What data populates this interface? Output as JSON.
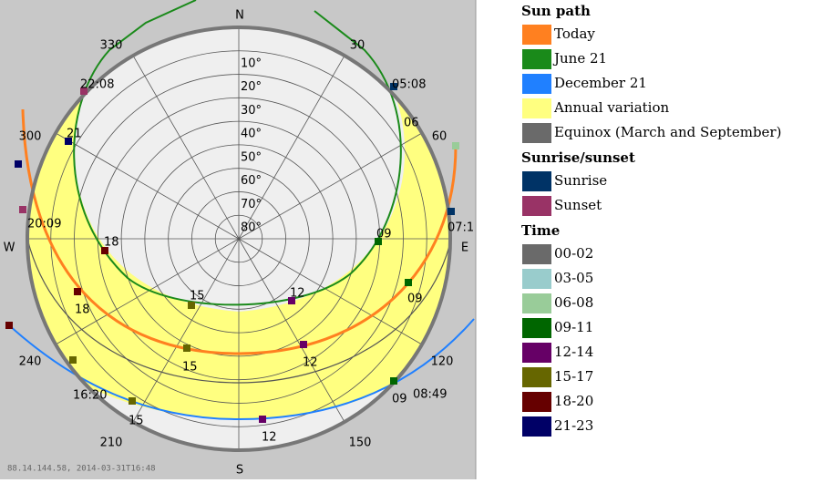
{
  "compass": [
    "N",
    "E",
    "S",
    "W"
  ],
  "altitudes": [
    "10°",
    "20°",
    "30°",
    "40°",
    "50°",
    "60°",
    "70°",
    "80°"
  ],
  "azimuths": [
    "30",
    "60",
    "120",
    "150",
    "210",
    "240",
    "300",
    "330"
  ],
  "time_labels": [
    "22:08",
    "05:08",
    "06",
    "21",
    "20:09",
    "07:1",
    "18",
    "09",
    "15",
    "12",
    "09",
    "18",
    "15",
    "12",
    "16:20",
    "09",
    "08:49",
    "15",
    "12"
  ],
  "legend": {
    "sun_path": {
      "title": "Sun path",
      "items": [
        {
          "label": "Today",
          "color": "#ff8020"
        },
        {
          "label": "June 21",
          "color": "#1a8a1a"
        },
        {
          "label": "December 21",
          "color": "#2080ff"
        },
        {
          "label": "Annual variation",
          "color": "#ffff80"
        },
        {
          "label": "Equinox (March and September)",
          "color": "#6a6a6a"
        }
      ]
    },
    "sunrise_sunset": {
      "title": "Sunrise/sunset",
      "items": [
        {
          "label": "Sunrise",
          "color": "#003366"
        },
        {
          "label": "Sunset",
          "color": "#993366"
        }
      ]
    },
    "time": {
      "title": "Time",
      "items": [
        {
          "label": "00-02",
          "color": "#6a6a6a"
        },
        {
          "label": "03-05",
          "color": "#99cccc"
        },
        {
          "label": "06-08",
          "color": "#99cc99"
        },
        {
          "label": "09-11",
          "color": "#006600"
        },
        {
          "label": "12-14",
          "color": "#660066"
        },
        {
          "label": "15-17",
          "color": "#666600"
        },
        {
          "label": "18-20",
          "color": "#660000"
        },
        {
          "label": "21-23",
          "color": "#000066"
        }
      ]
    }
  },
  "footer": "88.14.144.58, 2014-03-31T16:48"
}
